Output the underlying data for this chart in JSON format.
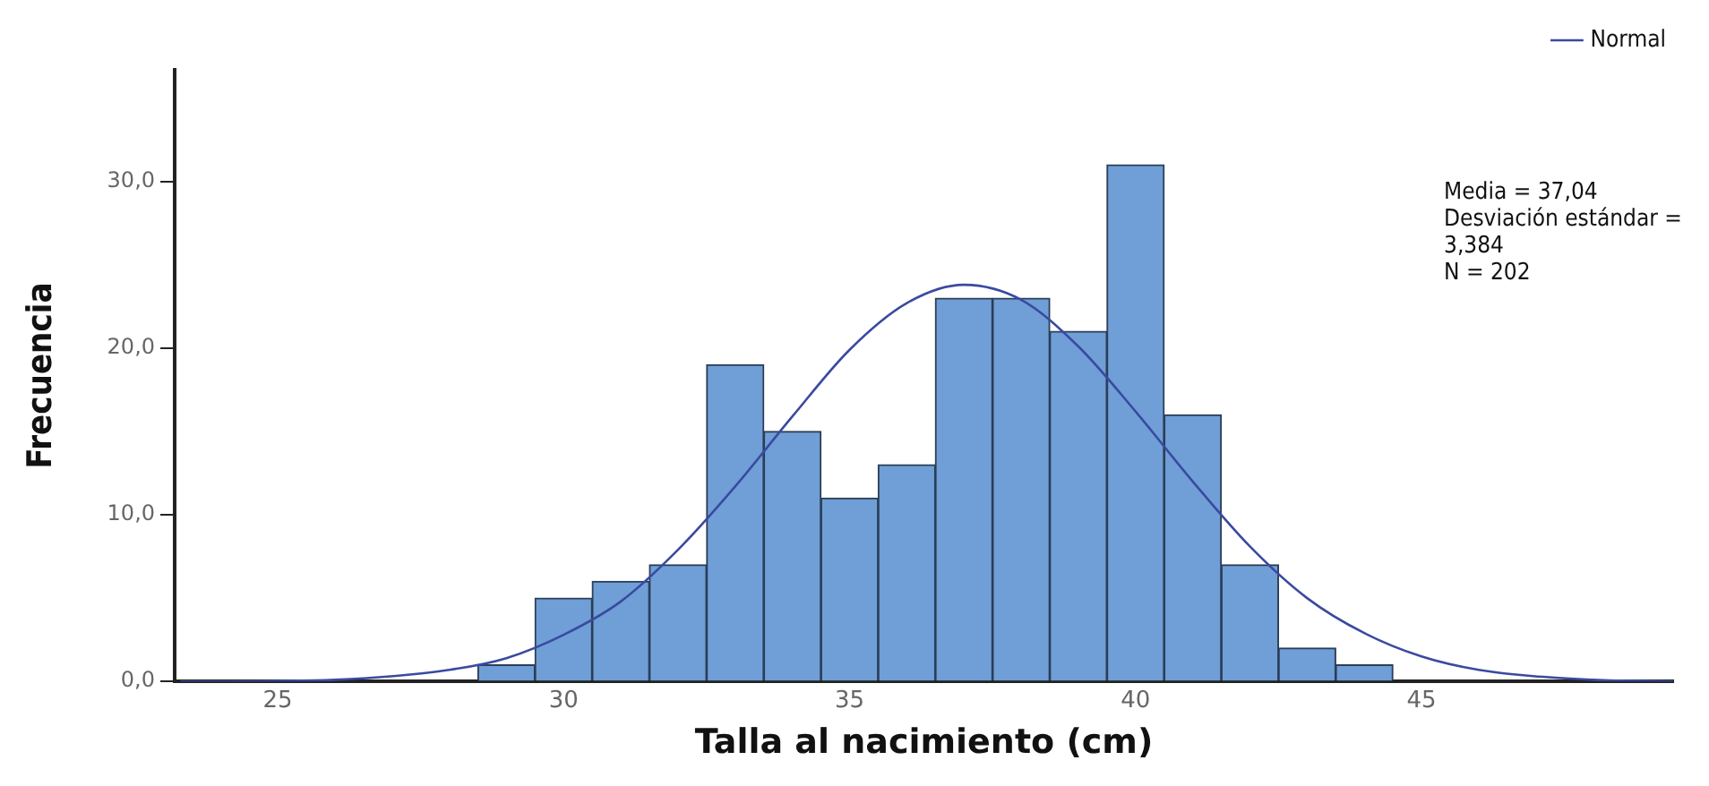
{
  "chart_data": {
    "type": "histogram",
    "xlabel": "Talla al nacimiento (cm)",
    "ylabel": "Frecuencia",
    "series": [
      {
        "color": "#6f9fd6",
        "bins": [
          28.5,
          29.5,
          30.5,
          31.5,
          32.5,
          33.5,
          34.5,
          35.5,
          36.5,
          37.5,
          38.5,
          39.5,
          40.5,
          41.5,
          42.5,
          43.5,
          44.5
        ],
        "values": [
          1,
          5,
          6,
          7,
          19,
          15,
          11,
          13,
          23,
          23,
          21,
          31,
          16,
          7,
          2,
          1
        ]
      },
      {
        "type": "line",
        "name": "Normal",
        "color": "#3a4aa0",
        "x": [
          23.3,
          24,
          26,
          28,
          29,
          30,
          31,
          32,
          33,
          34,
          35,
          36,
          37,
          38,
          39,
          40,
          41,
          42,
          43,
          44,
          45,
          46,
          48,
          49.4
        ],
        "values": [
          0.0,
          0.0,
          0.1,
          0.7,
          1.4,
          2.8,
          4.8,
          7.9,
          11.7,
          15.9,
          19.9,
          22.7,
          23.8,
          22.9,
          20.1,
          16.2,
          12.0,
          8.1,
          5.0,
          2.9,
          1.5,
          0.7,
          0.1,
          0.0
        ]
      }
    ],
    "xlim": [
      23.2,
      49.4
    ],
    "xticks": [
      25,
      30,
      35,
      40,
      45
    ],
    "ylim": [
      0,
      36.7
    ],
    "yticks": [
      {
        "value": 0,
        "label": "0,0"
      },
      {
        "value": 10,
        "label": "10,0"
      },
      {
        "value": 20,
        "label": "20,0"
      },
      {
        "value": 30,
        "label": "30,0"
      }
    ],
    "annotations": [
      "Media = 37,04",
      "Desviación estándar =\n3,384",
      "N = 202"
    ],
    "grid": false,
    "legend": "top right",
    "marker": "none",
    "line_style": "solid"
  }
}
